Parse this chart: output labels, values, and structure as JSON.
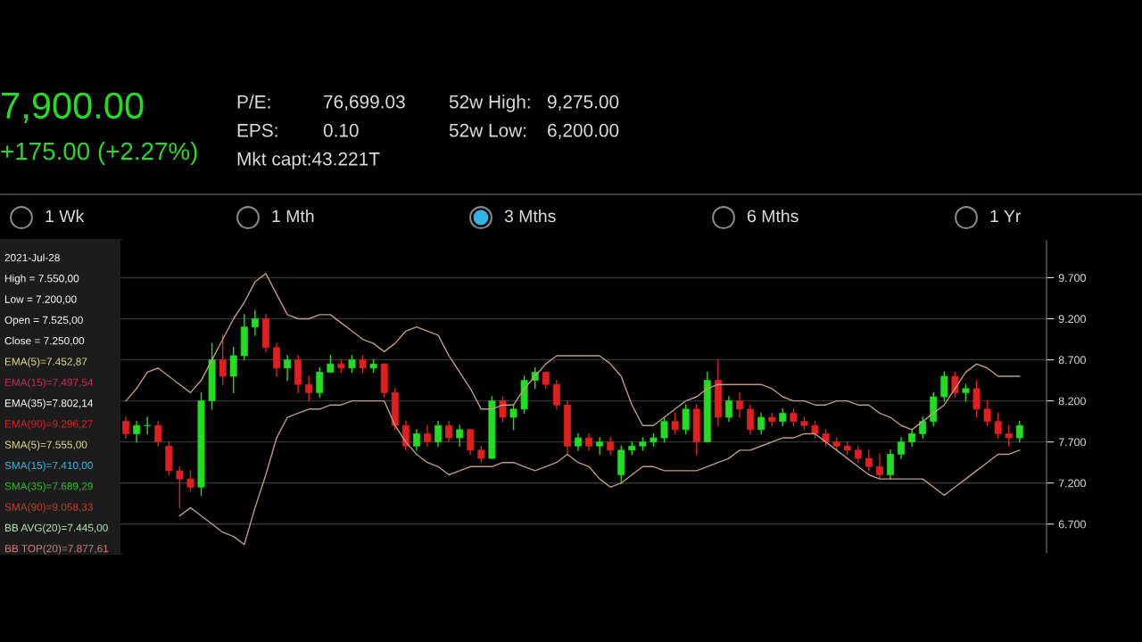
{
  "chart_data": {
    "type": "candlestick",
    "annotations": [
      "7,900.00",
      "+175.00 (+2.27%)",
      "P/E:",
      "76,699.03",
      "EPS:",
      "0.10",
      "Mkt capt:43.221T",
      "52w High:",
      "9,275.00",
      "52w Low:",
      "6,200.00",
      "1 Wk",
      "1 Mth",
      "3 Mths",
      "6 Mths",
      "1 Yr",
      "2021-Jul-28",
      "High = 7.550,00",
      "Low = 7.200,00",
      "Open = 7.525,00",
      "Close = 7.250,00",
      "EMA(5)=7.452,87",
      "EMA(15)=7.497,54",
      "EMA(35)=7.802,14",
      "EMA(90)=9.296,27",
      "SMA(5)=7.555,00",
      "SMA(15)=7.410,00",
      "SMA(35)=7.689,29",
      "SMA(90)=9.058,33",
      "BB AVG(20)=7.445,00",
      "BB TOP(20)=7.877,61"
    ],
    "categories": [
      null,
      null,
      null,
      null,
      null,
      null,
      null,
      null,
      null,
      null,
      null,
      null,
      null,
      null,
      null,
      null,
      null,
      null,
      null,
      null,
      null,
      null,
      null,
      null,
      null,
      null,
      null,
      null,
      null,
      null,
      null,
      null,
      null,
      null,
      null,
      null,
      null,
      null,
      null,
      null,
      null,
      null,
      null,
      null,
      null,
      null,
      null,
      null,
      null,
      null,
      null,
      null,
      null,
      null,
      null,
      null,
      null,
      null,
      null,
      null,
      null,
      null,
      null,
      null,
      null,
      null,
      null,
      null,
      null,
      null,
      null,
      null,
      null,
      null,
      null,
      null,
      null,
      null,
      null,
      null,
      null,
      null,
      null,
      null
    ],
    "ohlc": [
      [
        7950,
        8000,
        7750,
        7800
      ],
      [
        7800,
        7950,
        7700,
        7900
      ],
      [
        7900,
        8000,
        7800,
        7900
      ],
      [
        7900,
        7950,
        7650,
        7700
      ],
      [
        7650,
        7700,
        7300,
        7350
      ],
      [
        7350,
        7400,
        6900,
        7250
      ],
      [
        7250,
        7350,
        7100,
        7150
      ],
      [
        7150,
        8300,
        7050,
        8200
      ],
      [
        8200,
        8900,
        8100,
        8700
      ],
      [
        8700,
        9000,
        8400,
        8500
      ],
      [
        8500,
        8850,
        8300,
        8750
      ],
      [
        8750,
        9250,
        8700,
        9100
      ],
      [
        9100,
        9300,
        9000,
        9200
      ],
      [
        9200,
        9250,
        8800,
        8850
      ],
      [
        8850,
        8900,
        8500,
        8600
      ],
      [
        8600,
        8750,
        8450,
        8700
      ],
      [
        8700,
        8750,
        8300,
        8400
      ],
      [
        8400,
        8500,
        8200,
        8300
      ],
      [
        8300,
        8600,
        8250,
        8550
      ],
      [
        8550,
        8750,
        8550,
        8650
      ],
      [
        8650,
        8700,
        8550,
        8600
      ],
      [
        8600,
        8750,
        8550,
        8700
      ],
      [
        8700,
        8750,
        8550,
        8600
      ],
      [
        8600,
        8700,
        8550,
        8650
      ],
      [
        8650,
        8650,
        8250,
        8300
      ],
      [
        8300,
        8350,
        7850,
        7900
      ],
      [
        7900,
        7950,
        7600,
        7650
      ],
      [
        7650,
        7850,
        7600,
        7800
      ],
      [
        7800,
        7900,
        7650,
        7700
      ],
      [
        7700,
        7950,
        7650,
        7900
      ],
      [
        7900,
        7950,
        7700,
        7750
      ],
      [
        7750,
        7900,
        7650,
        7850
      ],
      [
        7850,
        7850,
        7550,
        7600
      ],
      [
        7600,
        7650,
        7450,
        7500
      ],
      [
        7500,
        8250,
        7500,
        8200
      ],
      [
        8200,
        8250,
        7950,
        8000
      ],
      [
        8000,
        8150,
        7850,
        8100
      ],
      [
        8100,
        8500,
        8050,
        8450
      ],
      [
        8450,
        8600,
        8350,
        8550
      ],
      [
        8550,
        8550,
        8350,
        8400
      ],
      [
        8400,
        8450,
        8100,
        8150
      ],
      [
        8150,
        8200,
        7550,
        7650
      ],
      [
        7650,
        7800,
        7600,
        7750
      ],
      [
        7750,
        7800,
        7600,
        7650
      ],
      [
        7650,
        7750,
        7550,
        7700
      ],
      [
        7700,
        7750,
        7550,
        7600
      ],
      [
        7300,
        7650,
        7200,
        7600
      ],
      [
        7600,
        7700,
        7550,
        7650
      ],
      [
        7650,
        7750,
        7600,
        7700
      ],
      [
        7700,
        7800,
        7650,
        7750
      ],
      [
        7750,
        8000,
        7700,
        7950
      ],
      [
        7950,
        8050,
        7800,
        7850
      ],
      [
        7850,
        8150,
        7800,
        8100
      ],
      [
        8100,
        8150,
        7550,
        7700
      ],
      [
        7700,
        8550,
        7700,
        8450
      ],
      [
        8450,
        8700,
        7900,
        8000
      ],
      [
        8000,
        8250,
        7950,
        8200
      ],
      [
        8200,
        8300,
        8000,
        8100
      ],
      [
        8100,
        8150,
        7800,
        7850
      ],
      [
        7850,
        8050,
        7800,
        8000
      ],
      [
        8000,
        8050,
        7900,
        7950
      ],
      [
        7950,
        8100,
        7900,
        8050
      ],
      [
        8050,
        8100,
        7900,
        7950
      ],
      [
        7950,
        8000,
        7850,
        7900
      ],
      [
        7900,
        7950,
        7750,
        7800
      ],
      [
        7800,
        7850,
        7650,
        7700
      ],
      [
        7700,
        7750,
        7600,
        7650
      ],
      [
        7650,
        7700,
        7550,
        7600
      ],
      [
        7600,
        7650,
        7450,
        7500
      ],
      [
        7500,
        7600,
        7350,
        7400
      ],
      [
        7400,
        7550,
        7250,
        7300
      ],
      [
        7300,
        7600,
        7250,
        7550
      ],
      [
        7550,
        7750,
        7500,
        7700
      ],
      [
        7700,
        7850,
        7650,
        7800
      ],
      [
        7800,
        8000,
        7750,
        7950
      ],
      [
        7950,
        8300,
        7900,
        8250
      ],
      [
        8250,
        8550,
        8200,
        8500
      ],
      [
        8500,
        8550,
        8250,
        8300
      ],
      [
        8300,
        8400,
        8200,
        8350
      ],
      [
        8350,
        8450,
        8000,
        8100
      ],
      [
        8100,
        8200,
        7900,
        7950
      ],
      [
        7950,
        8050,
        7750,
        7800
      ],
      [
        7800,
        7900,
        7650,
        7750
      ],
      [
        7750,
        7950,
        7700,
        7900
      ]
    ],
    "colors": [
      "#e02020",
      "#22dd22",
      "#22dd22",
      "#e02020",
      "#e02020",
      "#e02020",
      "#e02020",
      "#22dd22",
      "#22dd22",
      "#e02020",
      "#22dd22",
      "#22dd22",
      "#22dd22",
      "#e02020",
      "#e02020",
      "#22dd22",
      "#e02020",
      "#e02020",
      "#22dd22",
      "#22dd22",
      "#e02020",
      "#22dd22",
      "#e02020",
      "#22dd22",
      "#e02020",
      "#e02020",
      "#e02020",
      "#22dd22",
      "#e02020",
      "#22dd22",
      "#e02020",
      "#22dd22",
      "#e02020",
      "#e02020",
      "#22dd22",
      "#e02020",
      "#22dd22",
      "#22dd22",
      "#22dd22",
      "#e02020",
      "#e02020",
      "#e02020",
      "#22dd22",
      "#e02020",
      "#22dd22",
      "#e02020",
      "#22dd22",
      "#22dd22",
      "#22dd22",
      "#22dd22",
      "#22dd22",
      "#e02020",
      "#22dd22",
      "#e02020",
      "#22dd22",
      "#e02020",
      "#22dd22",
      "#e02020",
      "#e02020",
      "#22dd22",
      "#e02020",
      "#22dd22",
      "#e02020",
      "#e02020",
      "#e02020",
      "#e02020",
      "#e02020",
      "#e02020",
      "#e02020",
      "#e02020",
      "#e02020",
      "#22dd22",
      "#22dd22",
      "#22dd22",
      "#22dd22",
      "#22dd22",
      "#22dd22",
      "#e02020",
      "#22dd22",
      "#e02020",
      "#e02020",
      "#e02020",
      "#e02020",
      "#22dd22"
    ],
    "series": [
      {
        "type": "line",
        "color": "#c09a88",
        "values": [
          8200,
          8350,
          8550,
          8600,
          8500,
          8400,
          8300,
          8450,
          8700,
          8950,
          9200,
          9400,
          9650,
          9750,
          9500,
          9250,
          9200,
          9200,
          9250,
          9250,
          9150,
          9050,
          8950,
          8900,
          8800,
          8900,
          9050,
          9100,
          9050,
          9000,
          8750,
          8550,
          8350,
          8100,
          8100,
          8150,
          8150,
          8350,
          8500,
          8650,
          8750,
          8750,
          8750,
          8750,
          8750,
          8650,
          8500,
          8150,
          7900,
          7900,
          8000,
          8100,
          8200,
          8250,
          8350,
          8400,
          8400,
          8400,
          8400,
          8400,
          8350,
          8250,
          8200,
          8200,
          8150,
          8150,
          8200,
          8200,
          8150,
          8150,
          8050,
          8000,
          7900,
          7850,
          7950,
          8050,
          8150,
          8350,
          8550,
          8650,
          8600,
          8500,
          8500,
          8500
        ]
      },
      {
        "type": "line",
        "color": "#c09a88",
        "values": [
          null,
          null,
          null,
          null,
          null,
          6800,
          6900,
          6800,
          6700,
          6600,
          6550,
          6450,
          6900,
          7300,
          7750,
          8000,
          8050,
          8100,
          8100,
          8150,
          8150,
          8200,
          8200,
          8200,
          8200,
          7900,
          7700,
          7550,
          7450,
          7400,
          7300,
          7350,
          7400,
          7400,
          7400,
          7450,
          7450,
          7400,
          7350,
          7400,
          7450,
          7550,
          7450,
          7400,
          7250,
          7150,
          7200,
          7300,
          7400,
          7400,
          7350,
          7350,
          7350,
          7350,
          7400,
          7450,
          7500,
          7600,
          7600,
          7650,
          7700,
          7750,
          7750,
          7800,
          7800,
          7700,
          7600,
          7500,
          7400,
          7300,
          7250,
          7250,
          7250,
          7250,
          7250,
          7150,
          7050,
          7150,
          7250,
          7350,
          7450,
          7550,
          7550,
          7600
        ]
      }
    ],
    "ylim": [
      6350,
      10150
    ],
    "yticks": [
      {
        "value": 6700,
        "label": "6.700"
      },
      {
        "value": 7200,
        "label": "7.200"
      },
      {
        "value": 7700,
        "label": "7.700"
      },
      {
        "value": 8200,
        "label": "8.200"
      },
      {
        "value": 8700,
        "label": "8.700"
      },
      {
        "value": 9200,
        "label": "9.200"
      },
      {
        "value": 9700,
        "label": "9.700"
      }
    ],
    "tick_labels": "y",
    "grid": "y"
  }
}
